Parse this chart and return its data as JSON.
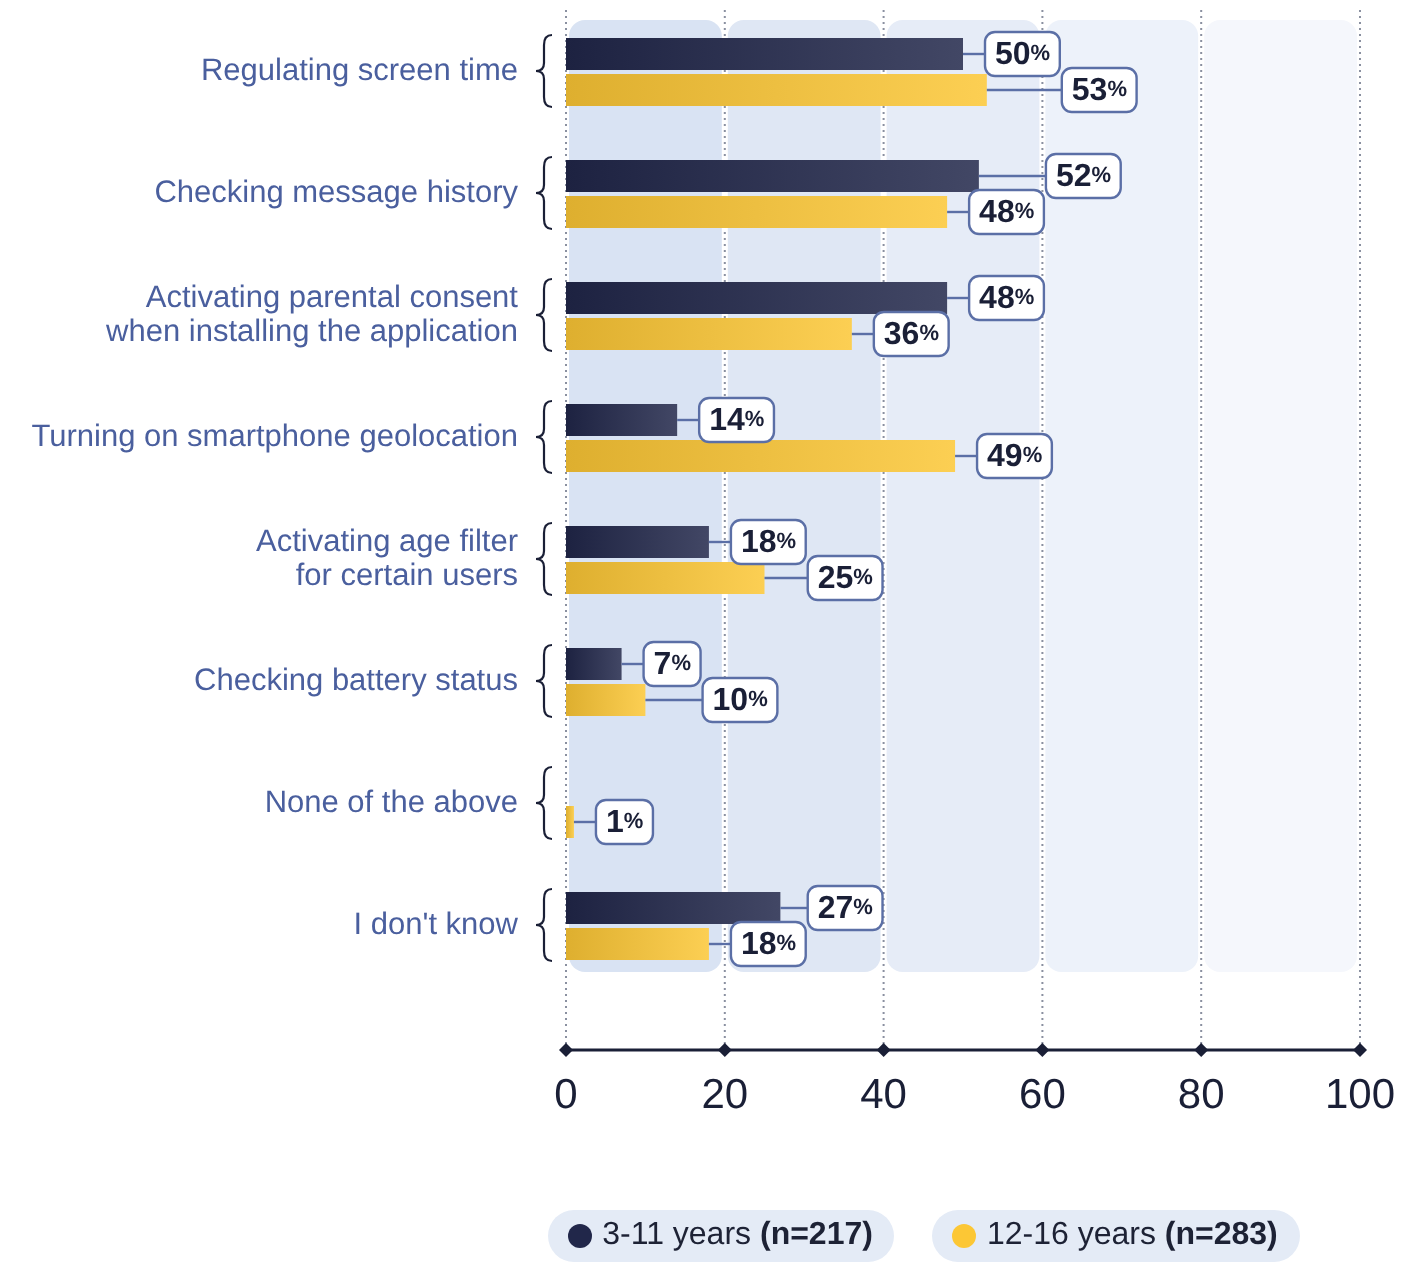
{
  "chart_data": {
    "type": "bar",
    "orientation": "horizontal",
    "categories": [
      "Regulating screen time",
      "Checking message history",
      "Activating parental consent\nwhen installing the application",
      "Turning on smartphone geolocation",
      "Activating age filter\nfor certain users",
      "Checking battery status",
      "None of the above",
      "I don't know"
    ],
    "series": [
      {
        "name": "3-11 years (n=217)",
        "color": "#21274a",
        "values": [
          50,
          52,
          48,
          14,
          18,
          7,
          null,
          27
        ],
        "value_labels": [
          "50%",
          "52%",
          "48%",
          "14%",
          "18%",
          "7%",
          null,
          "27%"
        ]
      },
      {
        "name": "12-16 years (n=283)",
        "color": "#fcc735",
        "values": [
          53,
          48,
          36,
          49,
          25,
          10,
          1,
          18
        ],
        "value_labels": [
          "53%",
          "48%",
          "36%",
          "49%",
          "25%",
          "10%",
          "1%",
          "18%"
        ]
      }
    ],
    "xlim": [
      0,
      100
    ],
    "xticks": [
      0,
      20,
      40,
      60,
      80,
      100
    ],
    "grid": "x",
    "legend": "bottom",
    "bands": [
      {
        "axis": "x",
        "from": 0,
        "to": 20,
        "color": "#d9e3f3"
      },
      {
        "axis": "x",
        "from": 20,
        "to": 40,
        "color": "#dfe7f4"
      },
      {
        "axis": "x",
        "from": 40,
        "to": 60,
        "color": "#e6ecf7"
      },
      {
        "axis": "x",
        "from": 60,
        "to": 80,
        "color": "#edf2fa"
      },
      {
        "axis": "x",
        "from": 80,
        "to": 100,
        "color": "#f5f7fc"
      }
    ]
  }
}
